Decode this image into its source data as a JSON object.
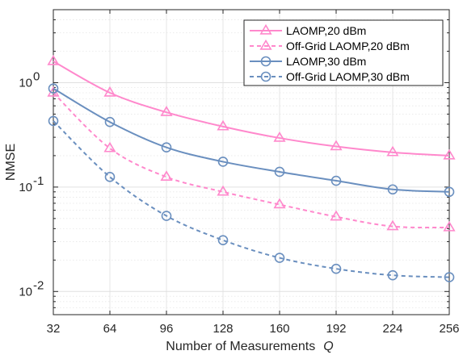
{
  "chart_data": {
    "type": "line",
    "xlabel": "Number of Measurements",
    "xlabel_var": "Q",
    "ylabel": "NMSE",
    "y_scale": "log",
    "xlim": [
      32,
      256
    ],
    "ylim": [
      0.006,
      5
    ],
    "grid": true,
    "minor_grid": true,
    "legend_position": "top-right",
    "x": [
      32,
      64,
      96,
      128,
      160,
      192,
      224,
      256
    ],
    "x_ticks": [
      "32",
      "64",
      "96",
      "128",
      "160",
      "192",
      "224",
      "256"
    ],
    "y_ticks": [
      {
        "value": 1,
        "base": "10",
        "exp": "0"
      },
      {
        "value": 0.1,
        "base": "10",
        "exp": "-1"
      },
      {
        "value": 0.01,
        "base": "10",
        "exp": "-2"
      }
    ],
    "series": [
      {
        "name": "LAOMP,20 dBm",
        "values": [
          1.6,
          0.8,
          0.52,
          0.38,
          0.295,
          0.245,
          0.215,
          0.2
        ],
        "color": "#ff88cc",
        "dash": false,
        "marker": "triangle"
      },
      {
        "name": "Off-Grid LAOMP,20 dBm",
        "values": [
          0.8,
          0.235,
          0.125,
          0.09,
          0.068,
          0.052,
          0.042,
          0.041
        ],
        "color": "#ff88cc",
        "dash": true,
        "marker": "triangle"
      },
      {
        "name": "LAOMP,30 dBm",
        "values": [
          0.88,
          0.42,
          0.24,
          0.175,
          0.14,
          0.115,
          0.095,
          0.09
        ],
        "color": "#6a8fbf",
        "dash": false,
        "marker": "circle"
      },
      {
        "name": "Off-Grid LAOMP,30 dBm",
        "values": [
          0.43,
          0.125,
          0.053,
          0.031,
          0.021,
          0.0165,
          0.0143,
          0.0137
        ],
        "color": "#6a8fbf",
        "dash": true,
        "marker": "circle"
      }
    ]
  }
}
